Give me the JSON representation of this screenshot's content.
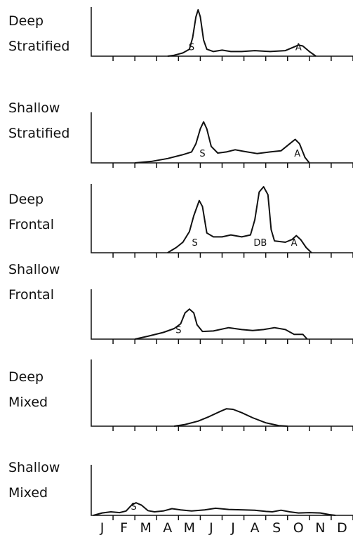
{
  "chart_data": {
    "type": "line",
    "categories": [
      "J",
      "F",
      "M",
      "A",
      "M",
      "J",
      "J",
      "A",
      "S",
      "O",
      "N",
      "D"
    ],
    "x_unit": "month (0 = start of January, 12 = end of December)",
    "ylim": [
      0,
      1
    ],
    "grid": false,
    "panels": [
      {
        "label_lines": [
          "Deep",
          "Stratified"
        ],
        "points": [
          [
            3.5,
            0
          ],
          [
            3.8,
            0.02
          ],
          [
            4.2,
            0.07
          ],
          [
            4.5,
            0.15
          ],
          [
            4.65,
            0.4
          ],
          [
            4.8,
            0.85
          ],
          [
            4.9,
            1.0
          ],
          [
            5.0,
            0.85
          ],
          [
            5.15,
            0.35
          ],
          [
            5.3,
            0.15
          ],
          [
            5.6,
            0.1
          ],
          [
            6.0,
            0.13
          ],
          [
            6.4,
            0.1
          ],
          [
            6.9,
            0.1
          ],
          [
            7.5,
            0.12
          ],
          [
            8.2,
            0.1
          ],
          [
            8.9,
            0.12
          ],
          [
            9.3,
            0.2
          ],
          [
            9.5,
            0.24
          ],
          [
            9.7,
            0.22
          ],
          [
            10.0,
            0.1
          ],
          [
            10.3,
            0
          ]
        ],
        "annotations": [
          {
            "text": "S",
            "x": 4.6,
            "y": 0.04
          },
          {
            "text": "A",
            "x": 9.5,
            "y": 0.04
          }
        ]
      },
      {
        "label_lines": [
          "Shallow",
          "Stratified"
        ],
        "points": [
          [
            2.0,
            0
          ],
          [
            2.8,
            0.03
          ],
          [
            3.5,
            0.08
          ],
          [
            4.2,
            0.15
          ],
          [
            4.6,
            0.2
          ],
          [
            4.8,
            0.35
          ],
          [
            5.0,
            0.62
          ],
          [
            5.15,
            0.75
          ],
          [
            5.3,
            0.62
          ],
          [
            5.5,
            0.3
          ],
          [
            5.8,
            0.18
          ],
          [
            6.2,
            0.2
          ],
          [
            6.6,
            0.24
          ],
          [
            7.0,
            0.21
          ],
          [
            7.6,
            0.17
          ],
          [
            8.2,
            0.2
          ],
          [
            8.7,
            0.22
          ],
          [
            9.1,
            0.35
          ],
          [
            9.35,
            0.43
          ],
          [
            9.55,
            0.35
          ],
          [
            9.8,
            0.1
          ],
          [
            10.0,
            0
          ]
        ],
        "annotations": [
          {
            "text": "S",
            "x": 5.1,
            "y": 0.04
          },
          {
            "text": "A",
            "x": 9.45,
            "y": 0.04
          }
        ]
      },
      {
        "label_lines": [
          "Deep",
          "Frontal"
        ],
        "points": [
          [
            3.5,
            0
          ],
          [
            3.9,
            0.08
          ],
          [
            4.2,
            0.16
          ],
          [
            4.5,
            0.32
          ],
          [
            4.7,
            0.56
          ],
          [
            4.95,
            0.79
          ],
          [
            5.1,
            0.7
          ],
          [
            5.3,
            0.3
          ],
          [
            5.6,
            0.24
          ],
          [
            6.0,
            0.24
          ],
          [
            6.4,
            0.27
          ],
          [
            6.9,
            0.24
          ],
          [
            7.3,
            0.27
          ],
          [
            7.5,
            0.5
          ],
          [
            7.7,
            0.92
          ],
          [
            7.9,
            1.0
          ],
          [
            8.1,
            0.88
          ],
          [
            8.25,
            0.35
          ],
          [
            8.4,
            0.18
          ],
          [
            8.9,
            0.16
          ],
          [
            9.2,
            0.2
          ],
          [
            9.4,
            0.26
          ],
          [
            9.6,
            0.2
          ],
          [
            9.85,
            0.08
          ],
          [
            10.1,
            0
          ]
        ],
        "annotations": [
          {
            "text": "S",
            "x": 4.75,
            "y": 0.04
          },
          {
            "text": "DB",
            "x": 7.75,
            "y": 0.04
          },
          {
            "text": "A",
            "x": 9.3,
            "y": 0.04
          }
        ]
      },
      {
        "label_lines": [
          "Shallow",
          "Frontal"
        ],
        "points": [
          [
            2.0,
            0
          ],
          [
            2.6,
            0.06
          ],
          [
            3.3,
            0.14
          ],
          [
            3.8,
            0.22
          ],
          [
            4.1,
            0.32
          ],
          [
            4.3,
            0.55
          ],
          [
            4.5,
            0.63
          ],
          [
            4.7,
            0.55
          ],
          [
            4.85,
            0.3
          ],
          [
            5.1,
            0.16
          ],
          [
            5.6,
            0.17
          ],
          [
            6.3,
            0.24
          ],
          [
            6.9,
            0.2
          ],
          [
            7.4,
            0.18
          ],
          [
            7.9,
            0.2
          ],
          [
            8.4,
            0.24
          ],
          [
            8.9,
            0.2
          ],
          [
            9.3,
            0.1
          ],
          [
            9.7,
            0.1
          ],
          [
            9.9,
            0
          ]
        ],
        "annotations": [
          {
            "text": "S",
            "x": 4.0,
            "y": 0.04
          }
        ]
      },
      {
        "label_lines": [
          "Deep",
          "Mixed"
        ],
        "points": [
          [
            3.8,
            0
          ],
          [
            4.3,
            0.03
          ],
          [
            4.9,
            0.09
          ],
          [
            5.4,
            0.17
          ],
          [
            5.9,
            0.26
          ],
          [
            6.2,
            0.31
          ],
          [
            6.5,
            0.3
          ],
          [
            6.9,
            0.24
          ],
          [
            7.4,
            0.15
          ],
          [
            8.0,
            0.06
          ],
          [
            8.6,
            0.01
          ],
          [
            9.0,
            0
          ]
        ],
        "annotations": []
      },
      {
        "label_lines": [
          "Shallow",
          "Mixed"
        ],
        "points": [
          [
            0.1,
            0
          ],
          [
            0.5,
            0.06
          ],
          [
            0.9,
            0.09
          ],
          [
            1.3,
            0.07
          ],
          [
            1.6,
            0.11
          ],
          [
            1.85,
            0.26
          ],
          [
            2.05,
            0.32
          ],
          [
            2.3,
            0.26
          ],
          [
            2.6,
            0.12
          ],
          [
            2.9,
            0.09
          ],
          [
            3.3,
            0.11
          ],
          [
            3.7,
            0.17
          ],
          [
            4.1,
            0.14
          ],
          [
            4.6,
            0.11
          ],
          [
            5.2,
            0.14
          ],
          [
            5.7,
            0.18
          ],
          [
            6.3,
            0.15
          ],
          [
            7.0,
            0.14
          ],
          [
            7.5,
            0.13
          ],
          [
            8.0,
            0.1
          ],
          [
            8.3,
            0.09
          ],
          [
            8.7,
            0.13
          ],
          [
            9.1,
            0.09
          ],
          [
            9.5,
            0.06
          ],
          [
            10.0,
            0.07
          ],
          [
            10.5,
            0.06
          ],
          [
            10.9,
            0.02
          ],
          [
            11.2,
            0
          ]
        ],
        "annotations": [
          {
            "text": "S",
            "x": 1.95,
            "y": 0.04
          }
        ]
      }
    ]
  }
}
